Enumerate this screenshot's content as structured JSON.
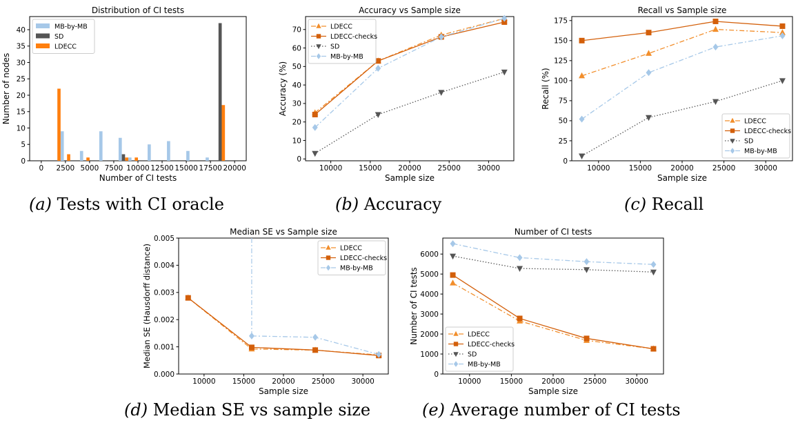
{
  "captions": [
    {
      "letter": "(a)",
      "text": " Tests with CI oracle"
    },
    {
      "letter": "(b)",
      "text": " Accuracy"
    },
    {
      "letter": "(c)",
      "text": " Recall"
    },
    {
      "letter": "(d)",
      "text": " Median SE vs sample size"
    },
    {
      "letter": "(e)",
      "text": " Average number of CI tests"
    }
  ],
  "colors": {
    "ldecc": "#f28e2b",
    "ldecc_checks": "#d35f0a",
    "sd": "#555555",
    "mbbymb": "#a6c8e8",
    "hist_mbbymb": "#a6c8e8",
    "hist_sd": "#555555",
    "hist_ldecc": "#ff7f0e"
  },
  "chart_data": [
    {
      "id": "a",
      "type": "bar",
      "title": "Distribution of CI tests",
      "xlabel": "Number of CI tests",
      "ylabel": "Number of nodes",
      "xlim": [
        -1200,
        21200
      ],
      "ylim": [
        0,
        44
      ],
      "xticks": [
        0,
        2500,
        5000,
        7500,
        10000,
        12500,
        15000,
        17500,
        20000
      ],
      "xticklabels": [
        "0",
        "2500",
        "5000",
        "7500",
        "10000",
        "12500",
        "15000",
        "17500",
        "20000"
      ],
      "yticks": [
        0,
        5,
        10,
        15,
        20,
        25,
        30,
        35,
        40
      ],
      "bin_edges": [
        0,
        1000,
        2000,
        3000,
        4000,
        5000,
        6000,
        7000,
        8000,
        9000,
        10000,
        11000,
        12000,
        13000,
        14000,
        15000,
        16000,
        17000,
        18000,
        19000,
        20000
      ],
      "legend_position": "top-left",
      "series": [
        {
          "name": "MB-by-MB",
          "color_key": "hist_mbbymb",
          "values": [
            0,
            0,
            9,
            0,
            3,
            0,
            9,
            0,
            7,
            1,
            0,
            5,
            0,
            6,
            0,
            3,
            0,
            1,
            0,
            0
          ]
        },
        {
          "name": "SD",
          "color_key": "hist_sd",
          "values": [
            0,
            0,
            0,
            0,
            0,
            0,
            0,
            0,
            2,
            0,
            0,
            0,
            0,
            0,
            0,
            0,
            0,
            0,
            42,
            0
          ]
        },
        {
          "name": "LDECC",
          "color_key": "hist_ldecc",
          "values": [
            0,
            22,
            2,
            0,
            1,
            0,
            0,
            0,
            1,
            1,
            0,
            0,
            0,
            0,
            0,
            0,
            0,
            0,
            17,
            0
          ]
        }
      ],
      "legend": [
        "MB-by-MB",
        "SD",
        "LDECC"
      ]
    },
    {
      "id": "b",
      "type": "line",
      "title": "Accuracy vs Sample size",
      "xlabel": "Sample size",
      "ylabel": "Accuracy (%)",
      "xlim": [
        6800,
        33200
      ],
      "ylim": [
        -1,
        77
      ],
      "xticks": [
        10000,
        15000,
        20000,
        25000,
        30000
      ],
      "yticks": [
        0,
        10,
        20,
        30,
        40,
        50,
        60,
        70
      ],
      "x": [
        8000,
        16000,
        24000,
        32000
      ],
      "legend_position": "top-left",
      "series": [
        {
          "name": "LDECC",
          "style": "ldecc",
          "values": [
            25,
            53,
            67,
            76
          ]
        },
        {
          "name": "LDECC-checks",
          "style": "ldecc_checks",
          "values": [
            24,
            53,
            66,
            74
          ]
        },
        {
          "name": "SD",
          "style": "sd",
          "values": [
            3,
            24,
            36,
            47
          ]
        },
        {
          "name": "MB-by-MB",
          "style": "mbbymb",
          "values": [
            17,
            49,
            66,
            76
          ]
        }
      ]
    },
    {
      "id": "c",
      "type": "line",
      "title": "Recall vs Sample size",
      "xlabel": "Sample size",
      "ylabel": "Recall (%)",
      "xlim": [
        6800,
        33200
      ],
      "ylim": [
        0,
        180
      ],
      "xticks": [
        10000,
        15000,
        20000,
        25000,
        30000
      ],
      "yticks": [
        0,
        25,
        50,
        75,
        100,
        125,
        150,
        175
      ],
      "x": [
        8000,
        16000,
        24000,
        32000
      ],
      "legend_position": "bottom-right",
      "series": [
        {
          "name": "LDECC",
          "style": "ldecc",
          "values": [
            106,
            134,
            164,
            160
          ]
        },
        {
          "name": "LDECC-checks",
          "style": "ldecc_checks",
          "values": [
            150,
            160,
            174,
            168
          ]
        },
        {
          "name": "SD",
          "style": "sd",
          "values": [
            6,
            54,
            74,
            100
          ]
        },
        {
          "name": "MB-by-MB",
          "style": "mbbymb",
          "values": [
            52,
            110,
            142,
            156
          ]
        }
      ]
    },
    {
      "id": "d",
      "type": "line",
      "title": "Median SE vs Sample size",
      "xlabel": "Sample size",
      "ylabel": "Median SE (Hausdorff distance)",
      "xlim": [
        6800,
        33200
      ],
      "ylim": [
        0,
        0.005
      ],
      "xticks": [
        10000,
        15000,
        20000,
        25000,
        30000
      ],
      "yticks": [
        0,
        0.001,
        0.002,
        0.003,
        0.004,
        0.005
      ],
      "yticklabels": [
        "0.000",
        "0.001",
        "0.002",
        "0.003",
        "0.004",
        "0.005"
      ],
      "x": [
        8000,
        16000,
        24000,
        32000
      ],
      "legend_position": "top-right",
      "series": [
        {
          "name": "LDECC",
          "style": "ldecc",
          "values": [
            0.0028,
            0.00092,
            0.00088,
            0.0007
          ]
        },
        {
          "name": "LDECC-checks",
          "style": "ldecc_checks",
          "values": [
            0.0028,
            0.00098,
            0.00088,
            0.00068
          ]
        },
        {
          "name": "MB-by-MB",
          "style": "mbbymb",
          "values": [
            null,
            0.0014,
            0.00135,
            0.00072
          ],
          "vertical_at_x": 16000
        }
      ]
    },
    {
      "id": "e",
      "type": "line",
      "title": "Number of CI tests",
      "xlabel": "Sample size",
      "ylabel": "Number of CI tests",
      "xlim": [
        6800,
        33200
      ],
      "ylim": [
        0,
        6800
      ],
      "xticks": [
        10000,
        15000,
        20000,
        25000,
        30000
      ],
      "yticks": [
        0,
        1000,
        2000,
        3000,
        4000,
        5000,
        6000
      ],
      "x": [
        8000,
        16000,
        24000,
        32000
      ],
      "legend_position": "bottom-left",
      "series": [
        {
          "name": "LDECC",
          "style": "ldecc",
          "values": [
            4550,
            2650,
            1680,
            1260
          ]
        },
        {
          "name": "LDECC-checks",
          "style": "ldecc_checks",
          "values": [
            4950,
            2780,
            1780,
            1260
          ]
        },
        {
          "name": "SD",
          "style": "sd",
          "values": [
            5900,
            5280,
            5220,
            5100
          ]
        },
        {
          "name": "MB-by-MB",
          "style": "mbbymb",
          "values": [
            6520,
            5820,
            5620,
            5480
          ]
        }
      ]
    }
  ]
}
